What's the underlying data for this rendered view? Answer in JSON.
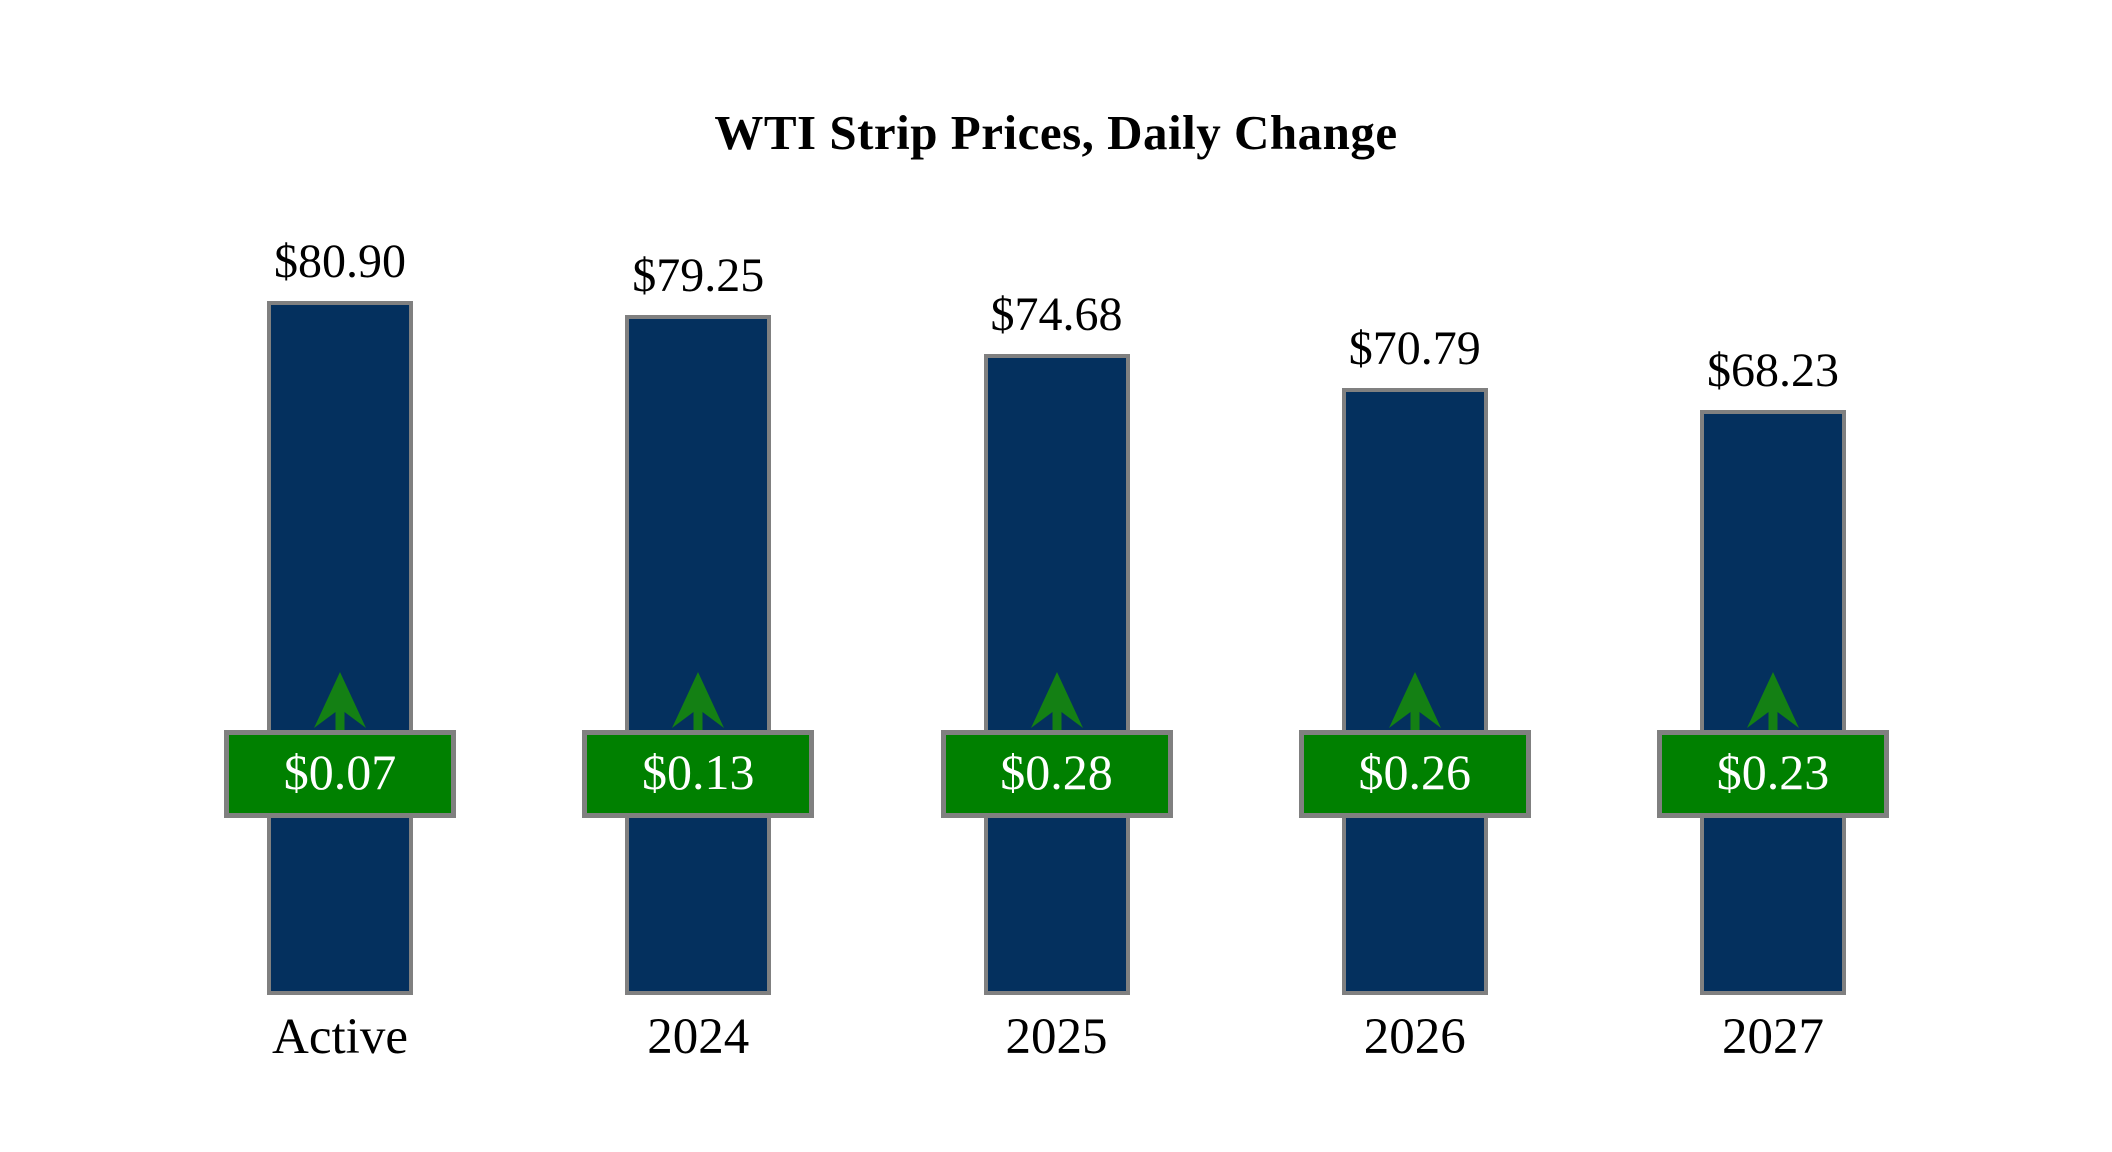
{
  "title": "WTI Strip Prices, Daily Change",
  "colors": {
    "background": "#ffffff",
    "bar_fill": "#04305E",
    "bar_border": "#808080",
    "badge_fill": "#008000",
    "badge_border": "#808080",
    "badge_text": "#ffffff",
    "arrow": "#148014",
    "label_text": "#000000"
  },
  "chart_data": {
    "type": "bar",
    "title": "WTI Strip Prices, Daily Change",
    "categories": [
      "Active",
      "2024",
      "2025",
      "2026",
      "2027"
    ],
    "series": [
      {
        "name": "Strip Price",
        "values": [
          80.9,
          79.25,
          74.68,
          70.79,
          68.23
        ],
        "labels": [
          "$80.90",
          "$79.25",
          "$74.68",
          "$70.79",
          "$68.23"
        ]
      },
      {
        "name": "Daily Change",
        "direction": "up",
        "values": [
          0.07,
          0.13,
          0.28,
          0.26,
          0.23
        ],
        "labels": [
          "$0.07",
          "$0.13",
          "$0.28",
          "$0.26",
          "$0.23"
        ]
      }
    ],
    "ylim": [
      0,
      81
    ],
    "grid": false,
    "legend": false,
    "axes_visible": false
  }
}
